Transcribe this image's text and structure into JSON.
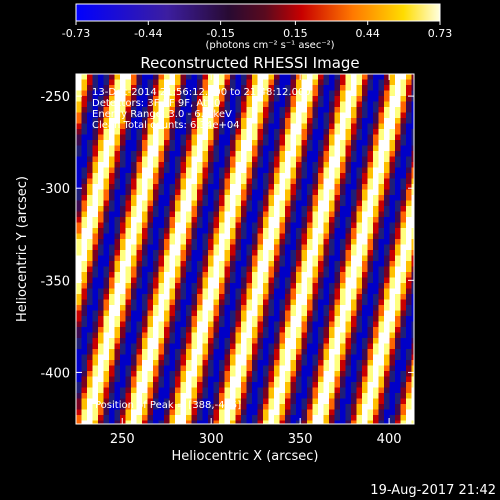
{
  "colorbar": {
    "ticks": [
      "-0.73",
      "-0.44",
      "-0.15",
      "0.15",
      "0.44",
      "0.73"
    ],
    "tick_values": [
      -0.73,
      -0.44,
      -0.15,
      0.15,
      0.44,
      0.73
    ],
    "range": [
      -0.73,
      0.73
    ],
    "units_label": "(photons cm⁻² s⁻¹ asec⁻²)"
  },
  "chart_data": {
    "type": "heatmap",
    "title": "Reconstructed RHESSI Image",
    "xlabel": "Heliocentric X (arcsec)",
    "ylabel": "Heliocentric Y (arcsec)",
    "xlim": [
      224,
      414
    ],
    "ylim": [
      -428,
      -238
    ],
    "xticks": [
      250,
      300,
      350,
      400
    ],
    "yticks": [
      -250,
      -300,
      -350,
      -400
    ],
    "pattern": "diagonal alternating stripes (fringe pattern)",
    "annotations": [
      "13-Dec-2014 21:56:12.000 to 21:48:12.000",
      "Detectors: 3F 5F 9F, Att 0",
      "Energy Range: 3.0 - 6.0 keV",
      "Clean  Total counts: 6.34e+04",
      "Position of Peak = [388,-405]"
    ],
    "peak": [
      388,
      -405
    ],
    "colors": {
      "palette": [
        "#0000c8",
        "#1e1e78",
        "#3c0a50",
        "#7a0020",
        "#c80000",
        "#ff6400",
        "#ffc000",
        "#ffff80",
        "#ffffff"
      ]
    }
  },
  "timestamp": "19-Aug-2017 21:42"
}
